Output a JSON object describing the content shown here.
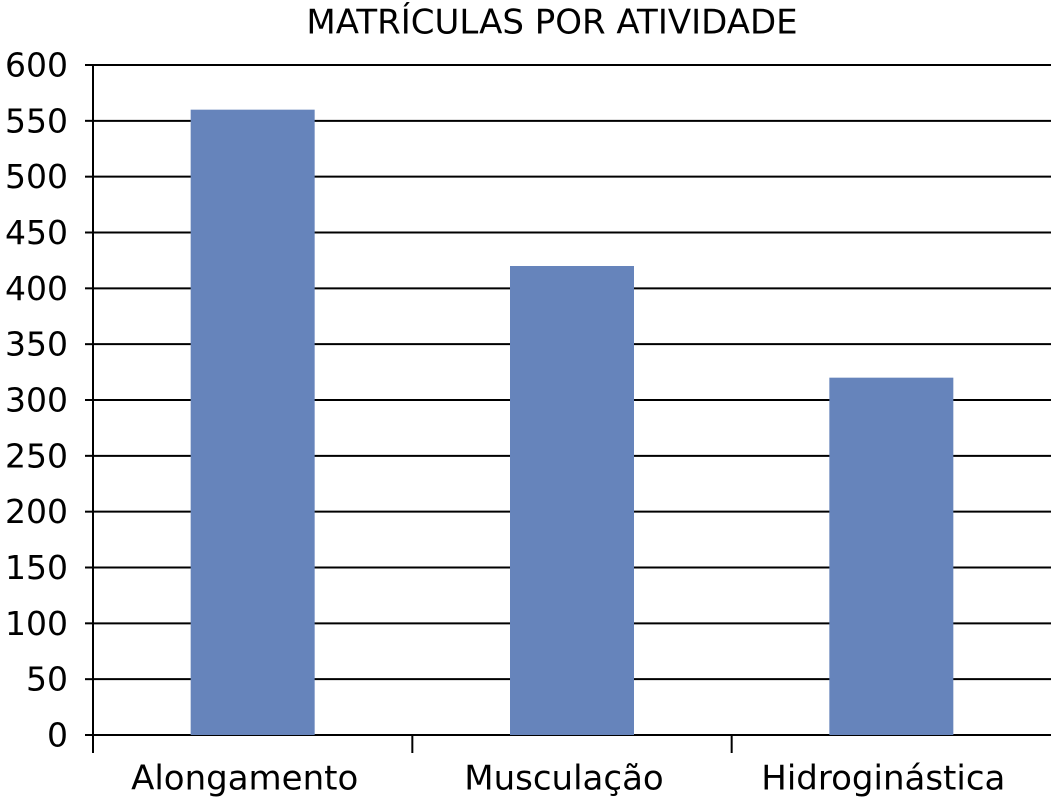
{
  "chart_data": {
    "type": "bar",
    "title": "MATRÍCULAS POR ATIVIDADE",
    "categories": [
      "Alongamento",
      "Musculação",
      "Hidroginástica"
    ],
    "values": [
      560,
      420,
      320
    ],
    "color": "#6684bb",
    "ylim": [
      0,
      600
    ],
    "yticks": [
      0,
      50,
      100,
      150,
      200,
      250,
      300,
      350,
      400,
      450,
      500,
      550,
      600
    ],
    "grid": true
  }
}
